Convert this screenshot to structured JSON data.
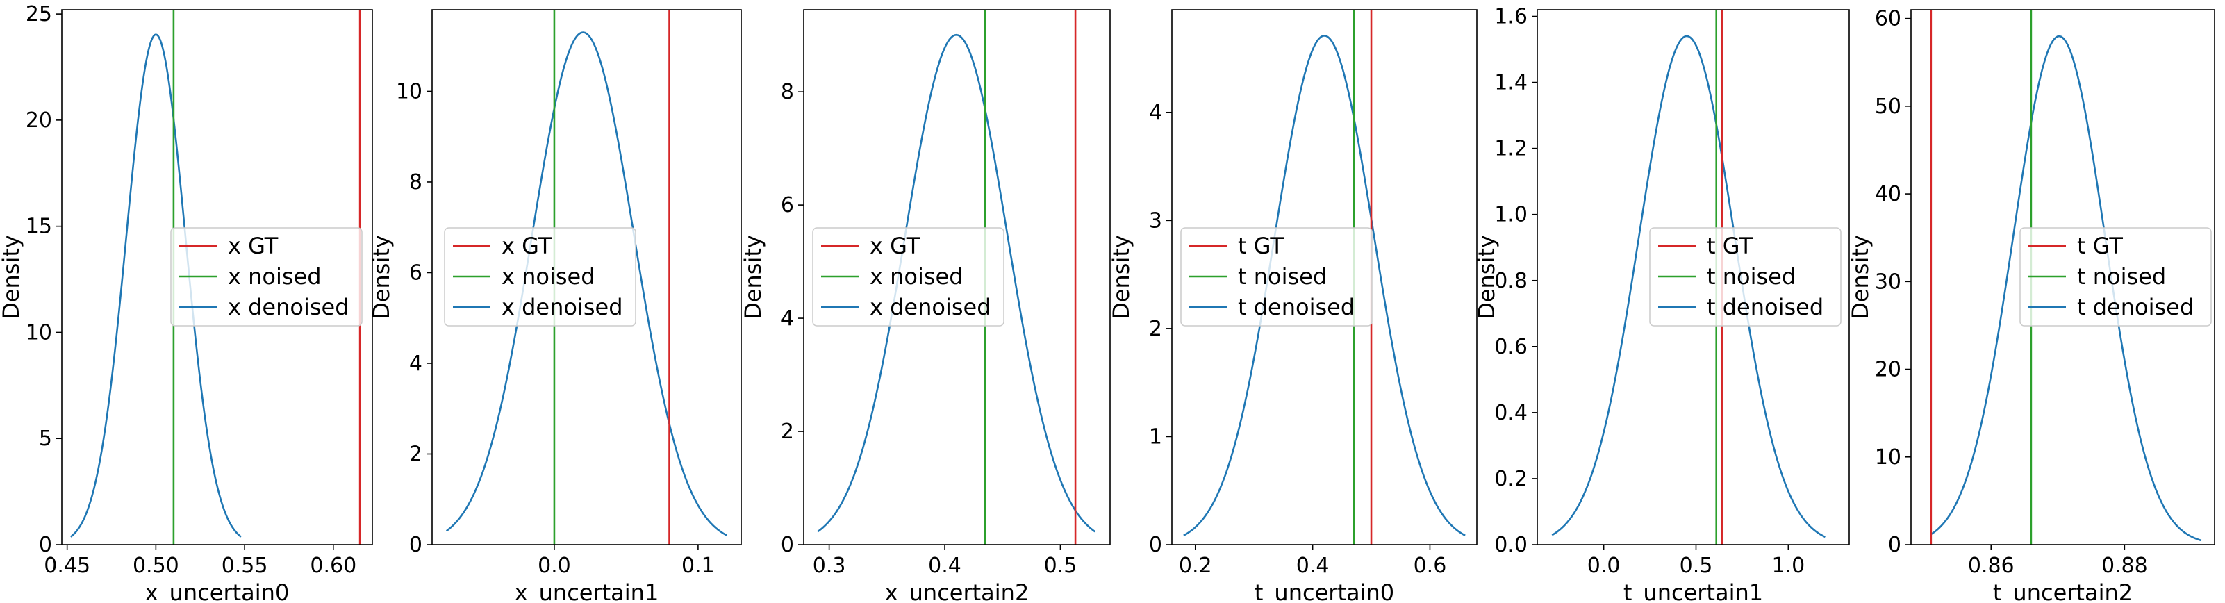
{
  "chart_data": [
    {
      "type": "line",
      "xlabel": "x_uncertain0",
      "ylabel": "Density",
      "xlim": [
        0.447,
        0.622
      ],
      "ylim": [
        0,
        25.2
      ],
      "xticks": [
        0.45,
        0.5,
        0.55,
        0.6
      ],
      "xtick_labels": [
        "0.45",
        "0.50",
        "0.55",
        "0.60"
      ],
      "yticks": [
        0,
        5,
        10,
        15,
        20,
        25
      ],
      "ytick_labels": [
        "0",
        "5",
        "10",
        "15",
        "20",
        "25"
      ],
      "vlines": [
        {
          "name": "x GT",
          "x": 0.615,
          "color": "#d62728"
        },
        {
          "name": "x noised",
          "x": 0.51,
          "color": "#2ca02c"
        }
      ],
      "density": {
        "name": "x denoised",
        "color": "#1f77b4",
        "mean": 0.5,
        "std": 0.0166,
        "x_range": [
          0.452,
          0.548
        ]
      },
      "legend_location": "center-right"
    },
    {
      "type": "line",
      "xlabel": "x_uncertain1",
      "ylabel": "Density",
      "xlim": [
        -0.085,
        0.13
      ],
      "ylim": [
        0,
        11.8
      ],
      "xticks": [
        0.0,
        0.1
      ],
      "xtick_labels": [
        "0.0",
        "0.1"
      ],
      "yticks": [
        0,
        2,
        4,
        6,
        8,
        10
      ],
      "ytick_labels": [
        "0",
        "2",
        "4",
        "6",
        "8",
        "10"
      ],
      "vlines": [
        {
          "name": "x GT",
          "x": 0.08,
          "color": "#d62728"
        },
        {
          "name": "x noised",
          "x": 0.0,
          "color": "#2ca02c"
        }
      ],
      "density": {
        "name": "x denoised",
        "color": "#1f77b4",
        "mean": 0.02,
        "std": 0.0353,
        "x_range": [
          -0.075,
          0.12
        ]
      },
      "legend_location": "center"
    },
    {
      "type": "line",
      "xlabel": "x_uncertain2",
      "ylabel": "Density",
      "xlim": [
        0.278,
        0.543
      ],
      "ylim": [
        0,
        9.45
      ],
      "xticks": [
        0.3,
        0.4,
        0.5
      ],
      "xtick_labels": [
        "0.3",
        "0.4",
        "0.5"
      ],
      "yticks": [
        0,
        2,
        4,
        6,
        8
      ],
      "ytick_labels": [
        "0",
        "2",
        "4",
        "6",
        "8"
      ],
      "vlines": [
        {
          "name": "x GT",
          "x": 0.513,
          "color": "#d62728"
        },
        {
          "name": "x noised",
          "x": 0.435,
          "color": "#2ca02c"
        }
      ],
      "density": {
        "name": "x denoised",
        "color": "#1f77b4",
        "mean": 0.41,
        "std": 0.0443,
        "x_range": [
          0.29,
          0.53
        ]
      },
      "legend_location": "center"
    },
    {
      "type": "line",
      "xlabel": "t_uncertain0",
      "ylabel": "Density",
      "xlim": [
        0.16,
        0.68
      ],
      "ylim": [
        0,
        4.95
      ],
      "xticks": [
        0.2,
        0.4,
        0.6
      ],
      "xtick_labels": [
        "0.2",
        "0.4",
        "0.6"
      ],
      "yticks": [
        0,
        1,
        2,
        3,
        4
      ],
      "ytick_labels": [
        "0",
        "1",
        "2",
        "3",
        "4"
      ],
      "vlines": [
        {
          "name": "t GT",
          "x": 0.5,
          "color": "#d62728"
        },
        {
          "name": "t noised",
          "x": 0.47,
          "color": "#2ca02c"
        }
      ],
      "density": {
        "name": "t denoised",
        "color": "#1f77b4",
        "mean": 0.42,
        "std": 0.0847,
        "x_range": [
          0.18,
          0.66
        ]
      },
      "legend_location": "center"
    },
    {
      "type": "line",
      "xlabel": "t_uncertain1",
      "ylabel": "Density",
      "xlim": [
        -0.36,
        1.33
      ],
      "ylim": [
        0,
        1.62
      ],
      "xticks": [
        0.0,
        0.5,
        1.0
      ],
      "xtick_labels": [
        "0.0",
        "0.5",
        "1.0"
      ],
      "yticks": [
        0.0,
        0.2,
        0.4,
        0.6,
        0.8,
        1.0,
        1.2,
        1.4,
        1.6
      ],
      "ytick_labels": [
        "0.0",
        "0.2",
        "0.4",
        "0.6",
        "0.8",
        "1.0",
        "1.2",
        "1.4",
        "1.6"
      ],
      "vlines": [
        {
          "name": "t GT",
          "x": 0.64,
          "color": "#d62728"
        },
        {
          "name": "t noised",
          "x": 0.61,
          "color": "#2ca02c"
        }
      ],
      "density": {
        "name": "t denoised",
        "color": "#1f77b4",
        "mean": 0.45,
        "std": 0.259,
        "x_range": [
          -0.28,
          1.2
        ]
      },
      "legend_location": "center-right"
    },
    {
      "type": "line",
      "xlabel": "t_uncertain2",
      "ylabel": "Density",
      "xlim": [
        0.848,
        0.8935
      ],
      "ylim": [
        0,
        61
      ],
      "xticks": [
        0.86,
        0.88
      ],
      "xtick_labels": [
        "0.86",
        "0.88"
      ],
      "yticks": [
        0,
        10,
        20,
        30,
        40,
        50,
        60
      ],
      "ytick_labels": [
        "0",
        "10",
        "20",
        "30",
        "40",
        "50",
        "60"
      ],
      "vlines": [
        {
          "name": "t GT",
          "x": 0.851,
          "color": "#d62728"
        },
        {
          "name": "t noised",
          "x": 0.866,
          "color": "#2ca02c"
        }
      ],
      "density": {
        "name": "t denoised",
        "color": "#1f77b4",
        "mean": 0.8702,
        "std": 0.00688,
        "x_range": [
          0.851,
          0.8915
        ]
      },
      "legend_location": "center-right"
    }
  ]
}
